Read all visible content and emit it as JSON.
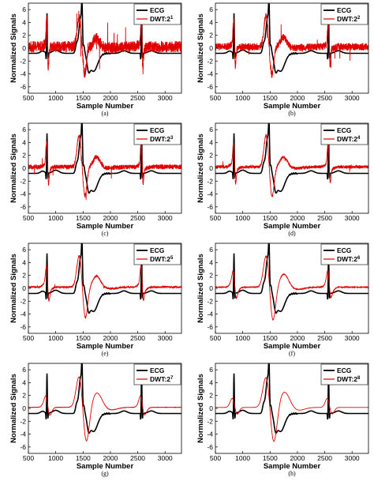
{
  "chart_data": [
    {
      "type": "line",
      "caption": "(a)",
      "xlabel": "Sample Number",
      "ylabel": "Normalized Signals",
      "xlim": [
        500,
        3300
      ],
      "ylim": [
        -7,
        7
      ],
      "xticks": [
        500,
        1000,
        1500,
        2000,
        2500,
        3000
      ],
      "yticks": [
        -6,
        -4,
        -2,
        0,
        2,
        4,
        6
      ],
      "series": [
        {
          "name": "ECG",
          "color": "#000000"
        },
        {
          "name": "DWT:2",
          "sup": "1",
          "color": "#e00000"
        }
      ],
      "red": {
        "noise": 0.55,
        "wave": 0.25,
        "spike": 6.0
      }
    },
    {
      "type": "line",
      "caption": "(b)",
      "xlabel": "Sample Number",
      "ylabel": "Normalized Signals",
      "xlim": [
        500,
        3300
      ],
      "ylim": [
        -7,
        7
      ],
      "xticks": [
        500,
        1000,
        1500,
        2000,
        2500,
        3000
      ],
      "yticks": [
        -6,
        -4,
        -2,
        0,
        2,
        4,
        6
      ],
      "series": [
        {
          "name": "ECG",
          "color": "#000000"
        },
        {
          "name": "DWT:2",
          "sup": "2",
          "color": "#e00000"
        }
      ],
      "red": {
        "noise": 0.35,
        "wave": 0.3,
        "spike": 5.5
      }
    },
    {
      "type": "line",
      "caption": "(c)",
      "xlabel": "Sample Number",
      "ylabel": "Normalized Signals",
      "xlim": [
        500,
        3300
      ],
      "ylim": [
        -7,
        7
      ],
      "xticks": [
        500,
        1000,
        1500,
        2000,
        2500,
        3000
      ],
      "yticks": [
        -6,
        -4,
        -2,
        0,
        2,
        4,
        6
      ],
      "series": [
        {
          "name": "ECG",
          "color": "#000000"
        },
        {
          "name": "DWT:2",
          "sup": "3",
          "color": "#e00000"
        }
      ],
      "red": {
        "noise": 0.22,
        "wave": 0.35,
        "spike": 5.0
      }
    },
    {
      "type": "line",
      "caption": "(d)",
      "xlabel": "Sample Number",
      "ylabel": "Normalized Signals",
      "xlim": [
        500,
        3300
      ],
      "ylim": [
        -7,
        7
      ],
      "xticks": [
        500,
        1000,
        1500,
        2000,
        2500,
        3000
      ],
      "yticks": [
        -6,
        -4,
        -2,
        0,
        2,
        4,
        6
      ],
      "series": [
        {
          "name": "ECG",
          "color": "#000000"
        },
        {
          "name": "DWT:2",
          "sup": "4",
          "color": "#e00000"
        }
      ],
      "red": {
        "noise": 0.15,
        "wave": 0.4,
        "spike": 5.0
      }
    },
    {
      "type": "line",
      "caption": "(e)",
      "xlabel": "Sample Number",
      "ylabel": "Normalized Signals",
      "xlim": [
        500,
        3300
      ],
      "ylim": [
        -7,
        7
      ],
      "xticks": [
        500,
        1000,
        1500,
        2000,
        2500,
        3000
      ],
      "yticks": [
        -6,
        -4,
        -2,
        0,
        2,
        4,
        6
      ],
      "series": [
        {
          "name": "ECG",
          "color": "#000000"
        },
        {
          "name": "DWT:2",
          "sup": "5",
          "color": "#e00000"
        }
      ],
      "red": {
        "noise": 0.08,
        "wave": 0.5,
        "spike": 4.5
      }
    },
    {
      "type": "line",
      "caption": "(f)",
      "xlabel": "Sample Number",
      "ylabel": "Normalized Signals",
      "xlim": [
        500,
        3300
      ],
      "ylim": [
        -7,
        7
      ],
      "xticks": [
        500,
        1000,
        1500,
        2000,
        2500,
        3000
      ],
      "yticks": [
        -6,
        -4,
        -2,
        0,
        2,
        4,
        6
      ],
      "series": [
        {
          "name": "ECG",
          "color": "#000000"
        },
        {
          "name": "DWT:2",
          "sup": "6",
          "color": "#e00000"
        }
      ],
      "red": {
        "noise": 0.03,
        "wave": 0.7,
        "spike": 3.5
      }
    },
    {
      "type": "line",
      "caption": "(g)",
      "xlabel": "Sample Number",
      "ylabel": "Normalized Signals",
      "xlim": [
        500,
        3300
      ],
      "ylim": [
        -7,
        7
      ],
      "xticks": [
        500,
        1000,
        1500,
        2000,
        2500,
        3000
      ],
      "yticks": [
        -6,
        -4,
        -2,
        0,
        2,
        4,
        6
      ],
      "series": [
        {
          "name": "ECG",
          "color": "#000000"
        },
        {
          "name": "DWT:2",
          "sup": "7",
          "color": "#e00000"
        }
      ],
      "red": {
        "noise": 0.01,
        "wave": 0.85,
        "spike": 2.0
      }
    },
    {
      "type": "line",
      "caption": "(h)",
      "xlabel": "Sample Number",
      "ylabel": "Normalized Signals",
      "xlim": [
        500,
        3300
      ],
      "ylim": [
        -7,
        7
      ],
      "xticks": [
        500,
        1000,
        1500,
        2000,
        2500,
        3000
      ],
      "yticks": [
        -6,
        -4,
        -2,
        0,
        2,
        4,
        6
      ],
      "series": [
        {
          "name": "ECG",
          "color": "#000000"
        },
        {
          "name": "DWT:2",
          "sup": "8",
          "color": "#e00000"
        }
      ],
      "red": {
        "noise": 0.0,
        "wave": 1.0,
        "spike": 1.0
      }
    }
  ]
}
